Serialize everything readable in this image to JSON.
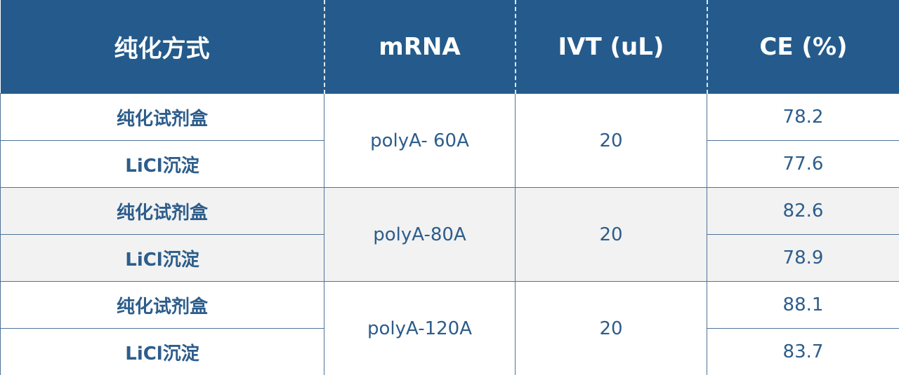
{
  "header": [
    "纯化方式",
    "mRNA",
    "IVT (uL)",
    "CE (%)"
  ],
  "groups": [
    {
      "mrna": "polyA- 60A",
      "ivt": "20",
      "rows": [
        {
          "method": "纯化试剂盒",
          "ce": "78.2"
        },
        {
          "method": "LiCl沉淀",
          "ce": "77.6"
        }
      ]
    },
    {
      "mrna": "polyA-80A",
      "ivt": "20",
      "rows": [
        {
          "method": "纯化试剂盒",
          "ce": "82.6"
        },
        {
          "method": "LiCl沉淀",
          "ce": "78.9"
        }
      ]
    },
    {
      "mrna": "polyA-120A",
      "ivt": "20",
      "rows": [
        {
          "method": "纯化试剂盒",
          "ce": "88.1"
        },
        {
          "method": "LiCl沉淀",
          "ce": "83.7"
        }
      ]
    }
  ]
}
